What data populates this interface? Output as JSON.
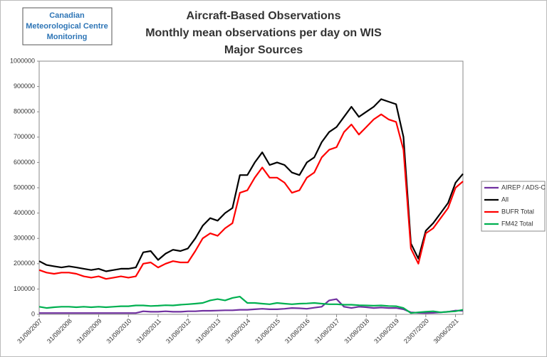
{
  "chart_data": {
    "type": "line",
    "title": [
      "Aircraft-Based Observations",
      "Monthly mean observations per day on WIS",
      "Major Sources"
    ],
    "logo": [
      "Canadian",
      "Meteorological Centre",
      "Monitoring"
    ],
    "categories": [
      "31/08/2007",
      null,
      null,
      null,
      "31/08/2008",
      null,
      null,
      null,
      "31/08/2009",
      null,
      null,
      null,
      "31/08/2010",
      null,
      null,
      null,
      "31/08/2011",
      null,
      null,
      null,
      "31/08/2012",
      null,
      null,
      null,
      "31/08/2013",
      null,
      null,
      null,
      "31/08/2014",
      null,
      null,
      null,
      "31/08/2015",
      null,
      null,
      null,
      "31/08/2016",
      null,
      null,
      null,
      "31/08/2017",
      null,
      null,
      null,
      "31/08/2018",
      null,
      null,
      null,
      "31/08/2019",
      null,
      null,
      null,
      "23/07/2020",
      null,
      null,
      null,
      "30/06/2021",
      null
    ],
    "ylim": [
      0,
      1000000
    ],
    "yticks": [
      0,
      100000,
      200000,
      300000,
      400000,
      500000,
      600000,
      700000,
      800000,
      900000,
      1000000
    ],
    "legend": "right",
    "series": [
      {
        "name": "AIREP / ADS-C",
        "color": "#7030a0",
        "values": [
          5000,
          5000,
          5000,
          5000,
          5000,
          5000,
          5000,
          5000,
          5000,
          5000,
          5000,
          5000,
          5000,
          5000,
          12000,
          10000,
          10000,
          12000,
          10000,
          10000,
          12000,
          12000,
          14000,
          14000,
          15000,
          16000,
          16000,
          18000,
          18000,
          20000,
          22000,
          20000,
          20000,
          22000,
          25000,
          24000,
          22000,
          26000,
          30000,
          55000,
          60000,
          30000,
          25000,
          30000,
          28000,
          25000,
          27000,
          25000,
          25000,
          20000,
          8000,
          6000,
          5000,
          6000,
          8000,
          10000,
          15000,
          14000
        ]
      },
      {
        "name": "All",
        "color": "#000000",
        "values": [
          210000,
          195000,
          190000,
          185000,
          190000,
          185000,
          180000,
          175000,
          180000,
          170000,
          175000,
          180000,
          180000,
          185000,
          245000,
          250000,
          215000,
          240000,
          255000,
          250000,
          260000,
          300000,
          350000,
          380000,
          370000,
          400000,
          420000,
          550000,
          550000,
          600000,
          640000,
          590000,
          600000,
          590000,
          560000,
          550000,
          600000,
          620000,
          680000,
          720000,
          740000,
          780000,
          820000,
          780000,
          800000,
          820000,
          850000,
          840000,
          830000,
          700000,
          280000,
          220000,
          330000,
          360000,
          400000,
          440000,
          520000,
          555000
        ]
      },
      {
        "name": "BUFR Total",
        "color": "#ff0000",
        "values": [
          175000,
          165000,
          160000,
          165000,
          165000,
          160000,
          150000,
          145000,
          150000,
          140000,
          145000,
          150000,
          145000,
          150000,
          200000,
          205000,
          185000,
          200000,
          210000,
          205000,
          205000,
          250000,
          300000,
          320000,
          310000,
          340000,
          360000,
          480000,
          490000,
          540000,
          580000,
          540000,
          540000,
          520000,
          480000,
          490000,
          540000,
          560000,
          620000,
          650000,
          660000,
          720000,
          750000,
          710000,
          740000,
          770000,
          790000,
          770000,
          760000,
          650000,
          260000,
          200000,
          320000,
          340000,
          380000,
          420000,
          500000,
          525000
        ]
      },
      {
        "name": "FM42 Total",
        "color": "#00b050",
        "values": [
          30000,
          25000,
          28000,
          30000,
          30000,
          28000,
          30000,
          28000,
          30000,
          28000,
          30000,
          32000,
          32000,
          35000,
          35000,
          33000,
          34000,
          36000,
          35000,
          38000,
          40000,
          42000,
          45000,
          55000,
          60000,
          55000,
          65000,
          70000,
          45000,
          45000,
          42000,
          40000,
          45000,
          42000,
          40000,
          42000,
          43000,
          45000,
          42000,
          40000,
          40000,
          38000,
          38000,
          36000,
          35000,
          34000,
          35000,
          33000,
          32000,
          25000,
          5000,
          8000,
          10000,
          12000,
          8000,
          10000,
          12000,
          18000
        ]
      }
    ]
  }
}
